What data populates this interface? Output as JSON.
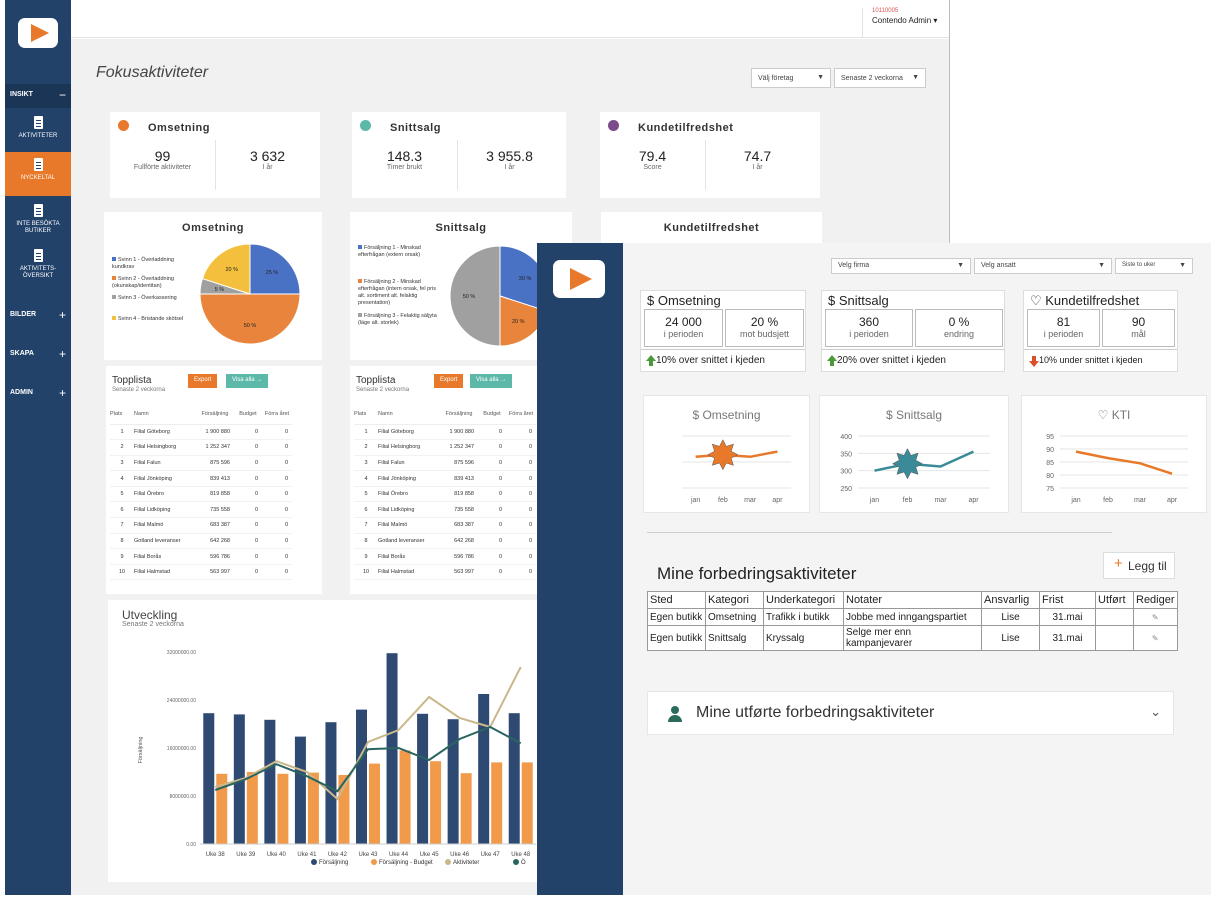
{
  "back": {
    "user": {
      "code": "10110005",
      "name": "Contendo Admin"
    },
    "page_title": "Fokusaktiviteter",
    "dropdowns": {
      "company": "Välj företag",
      "period": "Senaste 2 veckorna"
    },
    "sidebar": {
      "sections": [
        {
          "label": "INSIKT",
          "toggle": "−"
        },
        {
          "label": "BILDER",
          "toggle": "+"
        },
        {
          "label": "SKAPA",
          "toggle": "+"
        },
        {
          "label": "ADMIN",
          "toggle": "+"
        }
      ],
      "items": [
        {
          "label": "AKTIVITETER"
        },
        {
          "label": "NYCKELTAL"
        },
        {
          "label": "INTE BESÖKTA BUTIKER"
        },
        {
          "label": "AKTIVITETS-ÖVERSIKT"
        }
      ]
    },
    "kpis": [
      {
        "title": "Omsetning",
        "icon_color": "#e8792a",
        "a_value": "99",
        "a_sub": "Fullförte aktiviteter",
        "b_value": "3 632",
        "b_sub": "I år"
      },
      {
        "title": "Snittsalg",
        "icon_color": "#5cb8a8",
        "a_value": "148.3",
        "a_sub": "Timer brukt",
        "b_value": "3 955.8",
        "b_sub": "I år"
      },
      {
        "title": "Kundetilfredshet",
        "icon_color": "#7a4a8a",
        "a_value": "79.4",
        "a_sub": "Score",
        "b_value": "74.7",
        "b_sub": "I år"
      }
    ],
    "pies": [
      {
        "title": "Omsetning",
        "legend": [
          "Svinn 1 - Överladdning kundkrav",
          "Svinn 2 - Överladdning (okunskap/identitan)",
          "Svinn 3 - Överkassering",
          "Svinn 4 - Bristande skötsel"
        ],
        "slices": [
          {
            "value": 25,
            "label": "25 %",
            "color": "#4a72c4"
          },
          {
            "value": 50,
            "label": "50 %",
            "color": "#e8843c"
          },
          {
            "value": 5,
            "label": "5 %",
            "color": "#a0a0a0"
          },
          {
            "value": 20,
            "label": "20 %",
            "color": "#f5bf3e"
          }
        ]
      },
      {
        "title": "Snittsalg",
        "legend": [
          "Försäljning 1 - Minskad efterfrågan (extern orsak)",
          "Försäljning 2 - Minskad efterfrågan (intern orsak, fel pris alt. sortiment alt. felaktig presentation)",
          "Försäljning 3 - Felaktig säljyta (läge alt. storlek)"
        ],
        "slices": [
          {
            "value": 30,
            "label": "30 %",
            "color": "#4a72c4"
          },
          {
            "value": 20,
            "label": "20 %",
            "color": "#e8843c"
          },
          {
            "value": 50,
            "label": "50 %",
            "color": "#a0a0a0"
          }
        ]
      },
      {
        "title": "Kundetilfredshet"
      }
    ],
    "topplista": {
      "title": "Topplista",
      "subtitle": "Senaste 2 veckorna",
      "export_label": "Export",
      "show_all_label": "Visa alla →",
      "headers": [
        "Plats",
        "Namn",
        "Försäljning",
        "Budget",
        "Förra året"
      ],
      "rows": [
        [
          "1",
          "Filial Göteborg",
          "1 900 880",
          "0",
          "0"
        ],
        [
          "2",
          "Filial Helsingborg",
          "1 252 347",
          "0",
          "0"
        ],
        [
          "3",
          "Filial Falun",
          "875 596",
          "0",
          "0"
        ],
        [
          "4",
          "Filial Jönköping",
          "839 413",
          "0",
          "0"
        ],
        [
          "5",
          "Filial Örebro",
          "819 858",
          "0",
          "0"
        ],
        [
          "6",
          "Filial Lidköping",
          "735 558",
          "0",
          "0"
        ],
        [
          "7",
          "Filial Malmö",
          "683 387",
          "0",
          "0"
        ],
        [
          "8",
          "Gotland leveranser",
          "642 268",
          "0",
          "0"
        ],
        [
          "9",
          "Filial Borås",
          "596 786",
          "0",
          "0"
        ],
        [
          "10",
          "Filial Halmstad",
          "563 997",
          "0",
          "0"
        ]
      ]
    },
    "utveckling": {
      "title": "Utveckling",
      "subtitle": "Senaste 2 veckorna",
      "ylabel": "Försäljning",
      "yticks": [
        "32000000.00",
        "24000000.00",
        "16000000.00",
        "8000000.00",
        "0.00"
      ],
      "categories": [
        "Uke 38",
        "Uke 39",
        "Uke 40",
        "Uke 41",
        "Uke 42",
        "Uke 43",
        "Uke 44",
        "Uke 45",
        "Uke 46",
        "Uke 47",
        "Uke 48"
      ],
      "legend": [
        "Försäljning",
        "Försäljning - Budget",
        "Aktiviteter",
        "Ö"
      ],
      "series_colors": [
        "#2e4a72",
        "#f09a4a",
        "#c9b88a",
        "#2a6460"
      ],
      "sales": [
        21800000,
        21600000,
        20700000,
        17900000,
        20300000,
        22400000,
        31800000,
        21700000,
        20800000,
        25000000,
        21800000
      ],
      "budget": [
        11700000,
        12000000,
        11700000,
        11900000,
        11500000,
        13400000,
        15600000,
        13800000,
        11800000,
        13600000,
        13600000
      ],
      "aktiviteter": [
        9500000,
        11000000,
        13800000,
        12000000,
        7500000,
        17000000,
        19000000,
        24500000,
        21000000,
        19500000,
        29500000
      ],
      "other": [
        9000000,
        10800000,
        13300000,
        11300000,
        8800000,
        15800000,
        16000000,
        14000000,
        17500000,
        19500000,
        16800000
      ]
    }
  },
  "front": {
    "dropdowns": {
      "firma": "Velg firma",
      "ansatt": "Velg ansatt",
      "periode": "Siste to uker"
    },
    "kpis": [
      {
        "title": "$ Omsetning",
        "a_value": "24 000",
        "a_sub": "i perioden",
        "b_value": "20 %",
        "b_sub": "mot budsjett",
        "footer": "10% over snittet i kjeden",
        "trend": "up"
      },
      {
        "title": "$ Snittsalg",
        "a_value": "360",
        "a_sub": "i perioden",
        "b_value": "0 %",
        "b_sub": "endring",
        "footer": "20% over snittet i kjeden",
        "trend": "up"
      },
      {
        "title": "♡ Kundetilfredshet",
        "a_value": "81",
        "a_sub": "i perioden",
        "b_value": "90",
        "b_sub": "mål",
        "footer": "10% under snittet i kjeden",
        "trend": "down"
      }
    ],
    "mini_charts": [
      {
        "title": "$ Omsetning",
        "xticks": [
          "jan",
          "feb",
          "mar",
          "apr"
        ],
        "yticks": [
          "",
          "",
          ""
        ],
        "values": [
          25000,
          26000,
          25000,
          27500
        ],
        "ylim": [
          10000,
          35000
        ],
        "color": "#e8792a",
        "marker_index": 1,
        "marker_color": "#e8792a"
      },
      {
        "title": "$ Snittsalg",
        "xticks": [
          "jan",
          "feb",
          "mar",
          "apr"
        ],
        "yticks": [
          "400",
          "350",
          "300",
          "250"
        ],
        "values": [
          300,
          320,
          312,
          355
        ],
        "ylim": [
          250,
          400
        ],
        "color": "#3a8a98",
        "marker_index": 1,
        "marker_color": "#3a8a98"
      },
      {
        "title": "♡ KTI",
        "xticks": [
          "jan",
          "feb",
          "mar",
          "apr"
        ],
        "yticks": [
          "95",
          "90",
          "85",
          "80",
          "75"
        ],
        "values": [
          89,
          86.5,
          84.5,
          80.5
        ],
        "ylim": [
          75,
          95
        ],
        "color": "#e8792a",
        "marker_index": -1,
        "marker_color": ""
      }
    ],
    "forbedring": {
      "title": "Mine forbedringsaktiviteter",
      "add_label": "Legg til",
      "headers": [
        "Sted",
        "Kategori",
        "Underkategori",
        "Notater",
        "Ansvarlig",
        "Frist",
        "Utført",
        "Rediger"
      ],
      "rows": [
        [
          "Egen butikk",
          "Omsetning",
          "Trafikk i butikk",
          "Jobbe med inngangspartiet",
          "Lise",
          "31.mai",
          "",
          ""
        ],
        [
          "Egen butikk",
          "Snittsalg",
          "Kryssalg",
          "Selge mer enn kampanjevarer",
          "Lise",
          "31.mai",
          "",
          ""
        ]
      ]
    },
    "utforte": {
      "title": "Mine utførte forbedringsaktiviteter"
    }
  }
}
